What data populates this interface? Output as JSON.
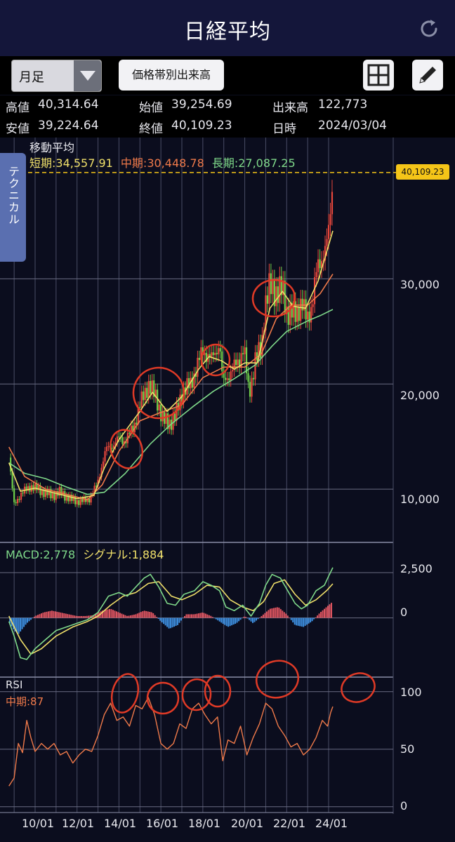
{
  "header": {
    "title": "日経平均",
    "refresh_icon": "refresh-icon"
  },
  "toolbar": {
    "period_select": "月足",
    "volume_button": "価格帯別出来高",
    "grid_icon": "grid-icon",
    "pencil_icon": "pencil-icon"
  },
  "info": {
    "high_label": "高値",
    "high": "40,314.64",
    "open_label": "始値",
    "open": "39,254.69",
    "volume_label": "出来高",
    "volume": "122,773",
    "low_label": "安値",
    "low": "39,224.64",
    "close_label": "終値",
    "close": "40,109.23",
    "date_label": "日時",
    "date": "2024/03/04"
  },
  "side_tab": "テクニカル",
  "colors": {
    "short_ma": "#f0e06a",
    "mid_ma": "#f07a4a",
    "long_ma": "#7fd98a",
    "up": "#e8473c",
    "down": "#6fcf4a",
    "macd_pos": "#e05560",
    "macd_neg": "#3d8fe0",
    "signal": "#f0e06a",
    "macd": "#7fd98a",
    "rsi": "#f07a4a",
    "annotation": "#e03a26"
  },
  "chart_data": {
    "type": "line",
    "x_ticks": [
      "10/01",
      "12/01",
      "14/01",
      "16/01",
      "18/01",
      "20/01",
      "22/01",
      "24/01"
    ],
    "main_panel": {
      "title": "移動平均",
      "legend": [
        {
          "label": "短期:34,557.91",
          "color": "#f0e06a"
        },
        {
          "label": "中期:30,448.78",
          "color": "#f07a4a"
        },
        {
          "label": "長期:27,087.25",
          "color": "#7fd98a"
        }
      ],
      "y_ticks": [
        "30,000",
        "20,000",
        "10,000"
      ],
      "y_tick_values": [
        30000,
        20000,
        10000
      ],
      "ylim": [
        5000,
        40500
      ],
      "last_price_label": "40,109.23",
      "close": [
        [
          2008.75,
          13000
        ],
        [
          2009.0,
          8500
        ],
        [
          2009.3,
          9500
        ],
        [
          2009.8,
          10300
        ],
        [
          2010.3,
          9800
        ],
        [
          2010.8,
          9400
        ],
        [
          2011.2,
          9700
        ],
        [
          2011.7,
          9000
        ],
        [
          2012.2,
          8800
        ],
        [
          2012.6,
          9100
        ],
        [
          2012.95,
          10400
        ],
        [
          2013.2,
          12400
        ],
        [
          2013.4,
          13800
        ],
        [
          2013.7,
          14200
        ],
        [
          2014.0,
          14800
        ],
        [
          2014.3,
          14600
        ],
        [
          2014.7,
          15900
        ],
        [
          2015.0,
          18000
        ],
        [
          2015.4,
          20000
        ],
        [
          2015.8,
          18600
        ],
        [
          2016.1,
          16500
        ],
        [
          2016.4,
          16300
        ],
        [
          2016.7,
          16900
        ],
        [
          2017.0,
          19200
        ],
        [
          2017.4,
          19900
        ],
        [
          2017.8,
          22100
        ],
        [
          2018.0,
          23200
        ],
        [
          2018.4,
          22300
        ],
        [
          2018.8,
          23900
        ],
        [
          2018.95,
          20000
        ],
        [
          2019.3,
          21100
        ],
        [
          2019.7,
          22100
        ],
        [
          2019.95,
          23600
        ],
        [
          2020.2,
          18900
        ],
        [
          2020.5,
          22300
        ],
        [
          2020.8,
          23300
        ],
        [
          2020.95,
          27400
        ],
        [
          2021.2,
          29200
        ],
        [
          2021.5,
          28800
        ],
        [
          2021.8,
          28900
        ],
        [
          2022.0,
          27000
        ],
        [
          2022.4,
          26500
        ],
        [
          2022.7,
          27800
        ],
        [
          2022.95,
          26100
        ],
        [
          2023.2,
          27500
        ],
        [
          2023.45,
          30900
        ],
        [
          2023.7,
          32200
        ],
        [
          2023.95,
          33500
        ],
        [
          2024.1,
          36300
        ],
        [
          2024.2,
          40109
        ]
      ],
      "ma_short": [
        [
          2008.75,
          12500
        ],
        [
          2009.3,
          9800
        ],
        [
          2010.0,
          10100
        ],
        [
          2011.0,
          9600
        ],
        [
          2012.0,
          9100
        ],
        [
          2012.8,
          9400
        ],
        [
          2013.3,
          12000
        ],
        [
          2014.0,
          14700
        ],
        [
          2015.0,
          17400
        ],
        [
          2015.6,
          19200
        ],
        [
          2016.3,
          17400
        ],
        [
          2017.0,
          18800
        ],
        [
          2017.8,
          21400
        ],
        [
          2018.3,
          22600
        ],
        [
          2018.9,
          22200
        ],
        [
          2019.5,
          21400
        ],
        [
          2020.0,
          22000
        ],
        [
          2020.6,
          22000
        ],
        [
          2021.2,
          27200
        ],
        [
          2021.8,
          28800
        ],
        [
          2022.3,
          27400
        ],
        [
          2022.9,
          27200
        ],
        [
          2023.5,
          29800
        ],
        [
          2024.0,
          33200
        ],
        [
          2024.2,
          34558
        ]
      ],
      "ma_mid": [
        [
          2008.75,
          14000
        ],
        [
          2009.5,
          11200
        ],
        [
          2010.5,
          10000
        ],
        [
          2011.5,
          9500
        ],
        [
          2012.5,
          9000
        ],
        [
          2013.2,
          10400
        ],
        [
          2014.0,
          13600
        ],
        [
          2015.0,
          16500
        ],
        [
          2016.0,
          17300
        ],
        [
          2017.0,
          18000
        ],
        [
          2018.0,
          20600
        ],
        [
          2019.0,
          21600
        ],
        [
          2020.0,
          21600
        ],
        [
          2020.8,
          22900
        ],
        [
          2021.5,
          26200
        ],
        [
          2022.2,
          27500
        ],
        [
          2023.0,
          27500
        ],
        [
          2023.6,
          28600
        ],
        [
          2024.2,
          30449
        ]
      ],
      "ma_long": [
        [
          2008.75,
          12500
        ],
        [
          2009.5,
          11500
        ],
        [
          2010.5,
          11000
        ],
        [
          2011.5,
          10200
        ],
        [
          2012.5,
          9500
        ],
        [
          2013.3,
          9700
        ],
        [
          2014.3,
          11500
        ],
        [
          2015.5,
          14300
        ],
        [
          2016.5,
          16200
        ],
        [
          2017.5,
          17800
        ],
        [
          2018.5,
          19300
        ],
        [
          2019.5,
          20500
        ],
        [
          2020.5,
          21800
        ],
        [
          2021.3,
          23600
        ],
        [
          2022.0,
          25000
        ],
        [
          2023.0,
          26000
        ],
        [
          2023.6,
          26500
        ],
        [
          2024.2,
          27087
        ]
      ]
    },
    "macd_panel": {
      "macd_label": "MACD:2,778",
      "signal_label": "シグナル:1,884",
      "y_ticks": [
        "2,500",
        "0"
      ],
      "y_tick_values": [
        2500,
        0
      ],
      "ylim": [
        -3000,
        3200
      ],
      "macd": [
        [
          2008.75,
          -200
        ],
        [
          2009.0,
          -1000
        ],
        [
          2009.3,
          -2200
        ],
        [
          2009.6,
          -2300
        ],
        [
          2010.0,
          -1700
        ],
        [
          2010.5,
          -1200
        ],
        [
          2011.0,
          -700
        ],
        [
          2011.5,
          -500
        ],
        [
          2012.0,
          -300
        ],
        [
          2012.5,
          -100
        ],
        [
          2013.0,
          300
        ],
        [
          2013.5,
          1200
        ],
        [
          2014.0,
          1400
        ],
        [
          2014.4,
          1200
        ],
        [
          2014.8,
          1700
        ],
        [
          2015.2,
          2200
        ],
        [
          2015.5,
          2400
        ],
        [
          2015.9,
          1700
        ],
        [
          2016.3,
          800
        ],
        [
          2016.7,
          700
        ],
        [
          2017.1,
          1300
        ],
        [
          2017.6,
          1500
        ],
        [
          2018.0,
          2000
        ],
        [
          2018.4,
          1800
        ],
        [
          2018.8,
          1500
        ],
        [
          2019.1,
          600
        ],
        [
          2019.5,
          400
        ],
        [
          2019.9,
          700
        ],
        [
          2020.3,
          100
        ],
        [
          2020.7,
          800
        ],
        [
          2021.0,
          1800
        ],
        [
          2021.3,
          2400
        ],
        [
          2021.7,
          2200
        ],
        [
          2022.0,
          1600
        ],
        [
          2022.4,
          800
        ],
        [
          2022.7,
          500
        ],
        [
          2023.0,
          700
        ],
        [
          2023.4,
          1500
        ],
        [
          2023.8,
          1800
        ],
        [
          2024.0,
          2300
        ],
        [
          2024.2,
          2778
        ]
      ],
      "signal": [
        [
          2008.75,
          100
        ],
        [
          2009.3,
          -1200
        ],
        [
          2009.8,
          -2000
        ],
        [
          2010.3,
          -1700
        ],
        [
          2011.0,
          -1000
        ],
        [
          2011.8,
          -500
        ],
        [
          2012.5,
          -200
        ],
        [
          2013.0,
          100
        ],
        [
          2013.6,
          700
        ],
        [
          2014.2,
          1200
        ],
        [
          2014.8,
          1400
        ],
        [
          2015.4,
          1900
        ],
        [
          2015.9,
          2000
        ],
        [
          2016.5,
          1200
        ],
        [
          2017.0,
          1000
        ],
        [
          2017.6,
          1300
        ],
        [
          2018.2,
          1800
        ],
        [
          2018.8,
          1700
        ],
        [
          2019.3,
          1000
        ],
        [
          2019.9,
          600
        ],
        [
          2020.4,
          400
        ],
        [
          2020.9,
          900
        ],
        [
          2021.4,
          1900
        ],
        [
          2021.9,
          2100
        ],
        [
          2022.4,
          1300
        ],
        [
          2022.9,
          700
        ],
        [
          2023.4,
          1000
        ],
        [
          2023.9,
          1500
        ],
        [
          2024.2,
          1884
        ]
      ],
      "histogram": [
        [
          2008.8,
          -300
        ],
        [
          2009.0,
          -700
        ],
        [
          2009.2,
          -900
        ],
        [
          2009.4,
          -600
        ],
        [
          2009.6,
          -300
        ],
        [
          2010.0,
          100
        ],
        [
          2010.4,
          300
        ],
        [
          2010.8,
          400
        ],
        [
          2011.2,
          300
        ],
        [
          2011.6,
          200
        ],
        [
          2012.0,
          100
        ],
        [
          2012.4,
          100
        ],
        [
          2012.8,
          150
        ],
        [
          2013.2,
          400
        ],
        [
          2013.6,
          500
        ],
        [
          2014.0,
          300
        ],
        [
          2014.4,
          100
        ],
        [
          2014.8,
          200
        ],
        [
          2015.2,
          400
        ],
        [
          2015.6,
          300
        ],
        [
          2016.0,
          -200
        ],
        [
          2016.4,
          -600
        ],
        [
          2016.8,
          -400
        ],
        [
          2017.2,
          200
        ],
        [
          2017.6,
          200
        ],
        [
          2018.0,
          300
        ],
        [
          2018.4,
          100
        ],
        [
          2018.8,
          -200
        ],
        [
          2019.2,
          -500
        ],
        [
          2019.6,
          -300
        ],
        [
          2020.0,
          100
        ],
        [
          2020.4,
          -300
        ],
        [
          2020.8,
          100
        ],
        [
          2021.2,
          500
        ],
        [
          2021.6,
          600
        ],
        [
          2022.0,
          200
        ],
        [
          2022.4,
          -400
        ],
        [
          2022.8,
          -500
        ],
        [
          2023.2,
          -200
        ],
        [
          2023.6,
          300
        ],
        [
          2024.0,
          700
        ],
        [
          2024.2,
          900
        ]
      ]
    },
    "rsi_panel": {
      "title": "RSI",
      "label": "中期:87",
      "y_ticks": [
        "100",
        "50",
        "0"
      ],
      "y_tick_values": [
        100,
        50,
        0
      ],
      "ylim": [
        -5,
        112
      ],
      "values": [
        [
          2008.75,
          18
        ],
        [
          2009.0,
          25
        ],
        [
          2009.2,
          55
        ],
        [
          2009.4,
          47
        ],
        [
          2009.6,
          75
        ],
        [
          2009.8,
          60
        ],
        [
          2010.0,
          48
        ],
        [
          2010.3,
          55
        ],
        [
          2010.6,
          50
        ],
        [
          2010.9,
          55
        ],
        [
          2011.2,
          45
        ],
        [
          2011.5,
          48
        ],
        [
          2011.8,
          38
        ],
        [
          2012.1,
          45
        ],
        [
          2012.4,
          50
        ],
        [
          2012.7,
          48
        ],
        [
          2013.0,
          62
        ],
        [
          2013.3,
          80
        ],
        [
          2013.6,
          90
        ],
        [
          2013.9,
          75
        ],
        [
          2014.2,
          78
        ],
        [
          2014.5,
          70
        ],
        [
          2014.8,
          88
        ],
        [
          2015.1,
          85
        ],
        [
          2015.4,
          95
        ],
        [
          2015.7,
          80
        ],
        [
          2016.0,
          55
        ],
        [
          2016.3,
          50
        ],
        [
          2016.6,
          55
        ],
        [
          2016.9,
          72
        ],
        [
          2017.2,
          68
        ],
        [
          2017.5,
          85
        ],
        [
          2017.8,
          90
        ],
        [
          2018.1,
          80
        ],
        [
          2018.4,
          72
        ],
        [
          2018.7,
          78
        ],
        [
          2018.95,
          40
        ],
        [
          2019.2,
          58
        ],
        [
          2019.5,
          55
        ],
        [
          2019.8,
          70
        ],
        [
          2020.1,
          45
        ],
        [
          2020.4,
          60
        ],
        [
          2020.7,
          72
        ],
        [
          2021.0,
          90
        ],
        [
          2021.3,
          85
        ],
        [
          2021.6,
          70
        ],
        [
          2021.9,
          62
        ],
        [
          2022.2,
          52
        ],
        [
          2022.5,
          55
        ],
        [
          2022.8,
          45
        ],
        [
          2023.1,
          50
        ],
        [
          2023.4,
          60
        ],
        [
          2023.7,
          75
        ],
        [
          2023.95,
          70
        ],
        [
          2024.1,
          82
        ],
        [
          2024.2,
          87
        ]
      ]
    }
  }
}
